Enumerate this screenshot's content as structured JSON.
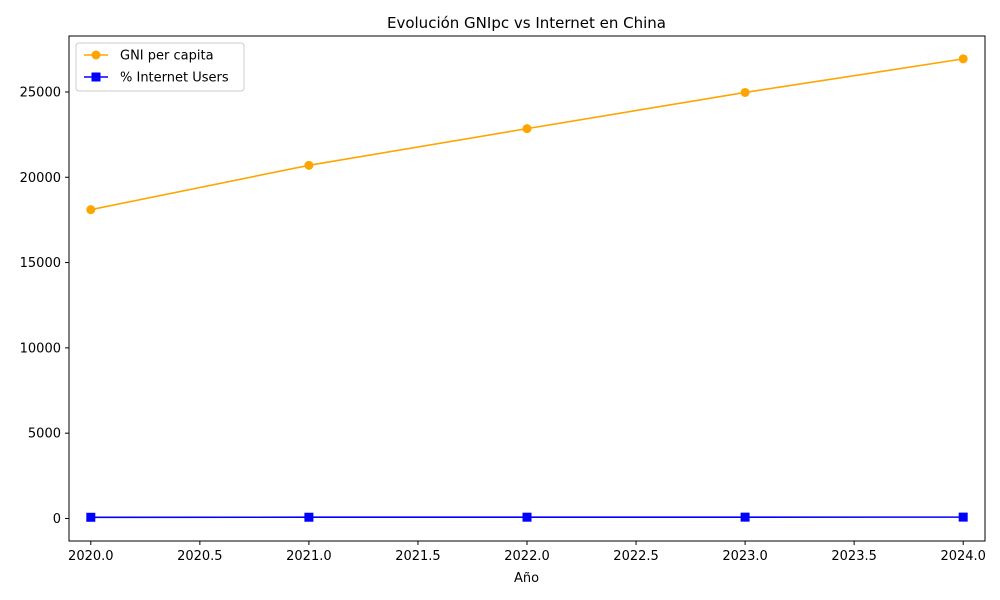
{
  "chart_data": {
    "type": "line",
    "title": "Evolución GNIpc vs Internet en China",
    "xlabel": "Año",
    "ylabel": "",
    "x": [
      2020,
      2021,
      2022,
      2023,
      2024
    ],
    "xlim": [
      2019.9,
      2024.1
    ],
    "ylim": [
      -1320,
      28280
    ],
    "x_ticks": [
      2020.0,
      2020.5,
      2021.0,
      2021.5,
      2022.0,
      2022.5,
      2023.0,
      2023.5,
      2024.0
    ],
    "x_tick_labels": [
      "2020.0",
      "2020.5",
      "2021.0",
      "2021.5",
      "2022.0",
      "2022.5",
      "2023.0",
      "2023.5",
      "2024.0"
    ],
    "y_ticks": [
      0,
      5000,
      10000,
      15000,
      20000,
      25000
    ],
    "y_tick_labels": [
      "0",
      "5000",
      "10000",
      "15000",
      "20000",
      "25000"
    ],
    "grid": false,
    "legend_position": "top-left",
    "series": [
      {
        "name": "GNI per capita",
        "values": [
          18100,
          20700,
          22850,
          24970,
          26940
        ],
        "color": "#ffa500",
        "marker": "circle"
      },
      {
        "name": "% Internet Users",
        "values": [
          70,
          73,
          76,
          78,
          80
        ],
        "color": "#0000ff",
        "marker": "square"
      }
    ]
  }
}
